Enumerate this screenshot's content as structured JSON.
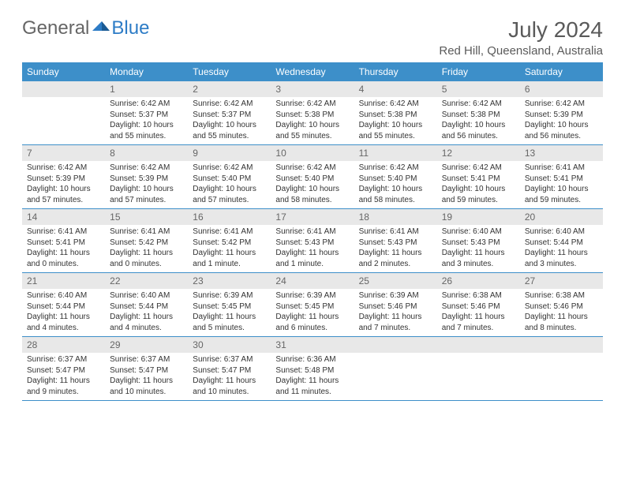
{
  "logo": {
    "text1": "General",
    "text2": "Blue"
  },
  "title": "July 2024",
  "location": "Red Hill, Queensland, Australia",
  "colors": {
    "header_bg": "#3d8fc9",
    "daynum_bg": "#e8e8e8",
    "text": "#333",
    "title": "#5a5a5a"
  },
  "weekdays": [
    "Sunday",
    "Monday",
    "Tuesday",
    "Wednesday",
    "Thursday",
    "Friday",
    "Saturday"
  ],
  "weeks": [
    [
      null,
      {
        "n": "1",
        "sr": "6:42 AM",
        "ss": "5:37 PM",
        "dl": "10 hours and 55 minutes."
      },
      {
        "n": "2",
        "sr": "6:42 AM",
        "ss": "5:37 PM",
        "dl": "10 hours and 55 minutes."
      },
      {
        "n": "3",
        "sr": "6:42 AM",
        "ss": "5:38 PM",
        "dl": "10 hours and 55 minutes."
      },
      {
        "n": "4",
        "sr": "6:42 AM",
        "ss": "5:38 PM",
        "dl": "10 hours and 55 minutes."
      },
      {
        "n": "5",
        "sr": "6:42 AM",
        "ss": "5:38 PM",
        "dl": "10 hours and 56 minutes."
      },
      {
        "n": "6",
        "sr": "6:42 AM",
        "ss": "5:39 PM",
        "dl": "10 hours and 56 minutes."
      }
    ],
    [
      {
        "n": "7",
        "sr": "6:42 AM",
        "ss": "5:39 PM",
        "dl": "10 hours and 57 minutes."
      },
      {
        "n": "8",
        "sr": "6:42 AM",
        "ss": "5:39 PM",
        "dl": "10 hours and 57 minutes."
      },
      {
        "n": "9",
        "sr": "6:42 AM",
        "ss": "5:40 PM",
        "dl": "10 hours and 57 minutes."
      },
      {
        "n": "10",
        "sr": "6:42 AM",
        "ss": "5:40 PM",
        "dl": "10 hours and 58 minutes."
      },
      {
        "n": "11",
        "sr": "6:42 AM",
        "ss": "5:40 PM",
        "dl": "10 hours and 58 minutes."
      },
      {
        "n": "12",
        "sr": "6:42 AM",
        "ss": "5:41 PM",
        "dl": "10 hours and 59 minutes."
      },
      {
        "n": "13",
        "sr": "6:41 AM",
        "ss": "5:41 PM",
        "dl": "10 hours and 59 minutes."
      }
    ],
    [
      {
        "n": "14",
        "sr": "6:41 AM",
        "ss": "5:41 PM",
        "dl": "11 hours and 0 minutes."
      },
      {
        "n": "15",
        "sr": "6:41 AM",
        "ss": "5:42 PM",
        "dl": "11 hours and 0 minutes."
      },
      {
        "n": "16",
        "sr": "6:41 AM",
        "ss": "5:42 PM",
        "dl": "11 hours and 1 minute."
      },
      {
        "n": "17",
        "sr": "6:41 AM",
        "ss": "5:43 PM",
        "dl": "11 hours and 1 minute."
      },
      {
        "n": "18",
        "sr": "6:41 AM",
        "ss": "5:43 PM",
        "dl": "11 hours and 2 minutes."
      },
      {
        "n": "19",
        "sr": "6:40 AM",
        "ss": "5:43 PM",
        "dl": "11 hours and 3 minutes."
      },
      {
        "n": "20",
        "sr": "6:40 AM",
        "ss": "5:44 PM",
        "dl": "11 hours and 3 minutes."
      }
    ],
    [
      {
        "n": "21",
        "sr": "6:40 AM",
        "ss": "5:44 PM",
        "dl": "11 hours and 4 minutes."
      },
      {
        "n": "22",
        "sr": "6:40 AM",
        "ss": "5:44 PM",
        "dl": "11 hours and 4 minutes."
      },
      {
        "n": "23",
        "sr": "6:39 AM",
        "ss": "5:45 PM",
        "dl": "11 hours and 5 minutes."
      },
      {
        "n": "24",
        "sr": "6:39 AM",
        "ss": "5:45 PM",
        "dl": "11 hours and 6 minutes."
      },
      {
        "n": "25",
        "sr": "6:39 AM",
        "ss": "5:46 PM",
        "dl": "11 hours and 7 minutes."
      },
      {
        "n": "26",
        "sr": "6:38 AM",
        "ss": "5:46 PM",
        "dl": "11 hours and 7 minutes."
      },
      {
        "n": "27",
        "sr": "6:38 AM",
        "ss": "5:46 PM",
        "dl": "11 hours and 8 minutes."
      }
    ],
    [
      {
        "n": "28",
        "sr": "6:37 AM",
        "ss": "5:47 PM",
        "dl": "11 hours and 9 minutes."
      },
      {
        "n": "29",
        "sr": "6:37 AM",
        "ss": "5:47 PM",
        "dl": "11 hours and 10 minutes."
      },
      {
        "n": "30",
        "sr": "6:37 AM",
        "ss": "5:47 PM",
        "dl": "11 hours and 10 minutes."
      },
      {
        "n": "31",
        "sr": "6:36 AM",
        "ss": "5:48 PM",
        "dl": "11 hours and 11 minutes."
      },
      null,
      null,
      null
    ]
  ],
  "labels": {
    "sunrise": "Sunrise:",
    "sunset": "Sunset:",
    "daylight": "Daylight:"
  }
}
